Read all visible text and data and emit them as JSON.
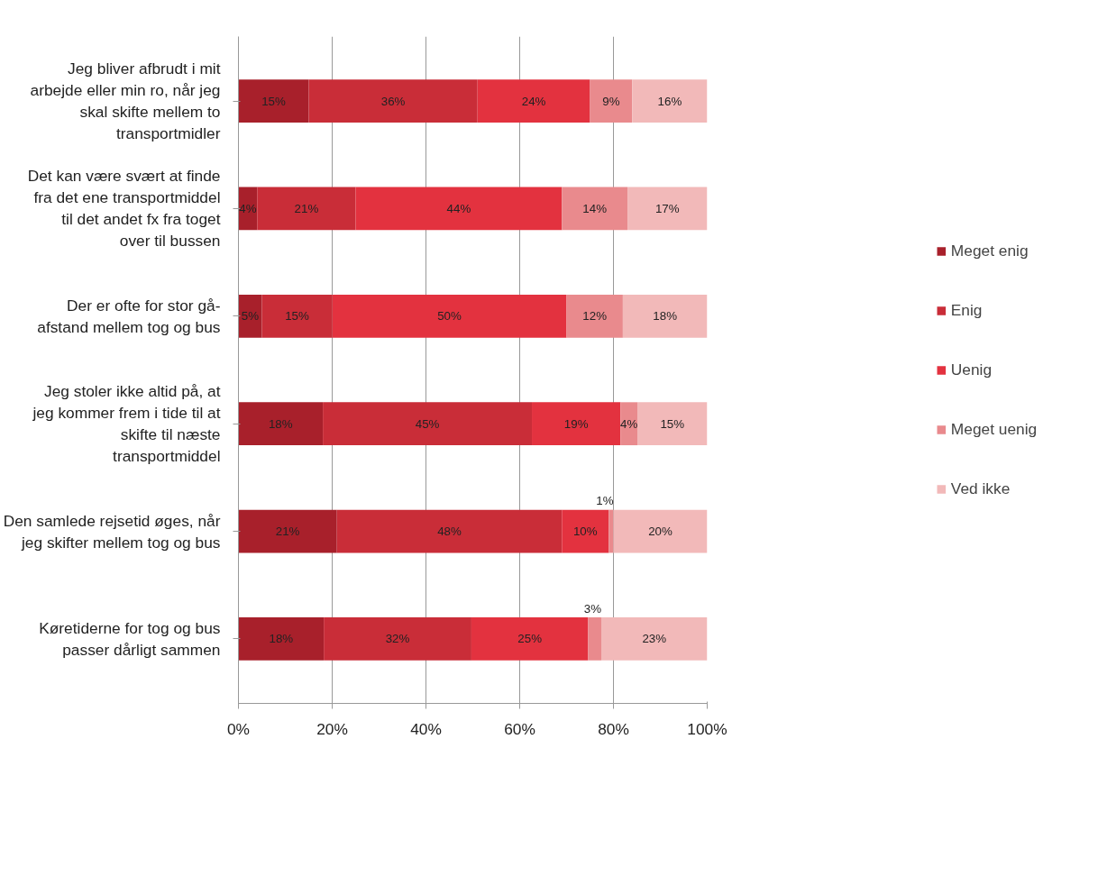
{
  "chart_data": {
    "type": "bar",
    "orientation": "horizontal",
    "stacked": true,
    "categories": [
      "Jeg bliver afbrudt i mit arbejde eller min ro, når jeg skal skifte mellem to transportmidler",
      "Det kan være svært at finde fra det ene transportmiddel til det andet fx fra toget over til bussen",
      "Der er ofte for stor gå-afstand mellem tog og bus",
      "Jeg stoler ikke altid på, at jeg kommer frem i tide til at skifte til næste transportmiddel",
      "Den samlede rejsetid øges, når jeg skifter mellem tog og bus",
      "Køretiderne for tog og bus passer dårligt sammen"
    ],
    "series": [
      {
        "name": "Meget enig",
        "color": "#a8202b",
        "values": [
          15,
          4,
          5,
          18,
          21,
          18.2
        ],
        "value_labels": [
          "15%",
          "4%",
          "5%",
          "18%",
          "21%",
          "18%"
        ]
      },
      {
        "name": "Enig",
        "color": "#c92d38",
        "values": [
          36,
          21,
          15,
          44.6,
          48,
          31.5
        ],
        "value_labels": [
          "36%",
          "21%",
          "15%",
          "45%",
          "48%",
          "32%"
        ]
      },
      {
        "name": "Uenig",
        "color": "#e3323f",
        "values": [
          24,
          44,
          50,
          18.9,
          10,
          24.9
        ],
        "value_labels": [
          "24%",
          "44%",
          "50%",
          "19%",
          "10%",
          "25%"
        ]
      },
      {
        "name": "Meget uenig",
        "color": "#e98a8d",
        "values": [
          9,
          14,
          12,
          3.6,
          1,
          2.8
        ],
        "value_labels": [
          "9%",
          "14%",
          "12%",
          "4%",
          "1%",
          "3%"
        ]
      },
      {
        "name": "Ved ikke",
        "color": "#f2b9b9",
        "values": [
          16,
          17,
          18,
          14.9,
          20,
          22.6
        ],
        "value_labels": [
          "16%",
          "17%",
          "18%",
          "15%",
          "20%",
          "23%"
        ]
      }
    ],
    "xlim": [
      0,
      100
    ],
    "xticks": [
      {
        "value": 0,
        "label": "0%"
      },
      {
        "value": 20,
        "label": "20%"
      },
      {
        "value": 40,
        "label": "40%"
      },
      {
        "value": 60,
        "label": "60%"
      },
      {
        "value": 80,
        "label": "80%"
      },
      {
        "value": 100,
        "label": "100%"
      }
    ],
    "grid": "x",
    "legend": "right"
  }
}
